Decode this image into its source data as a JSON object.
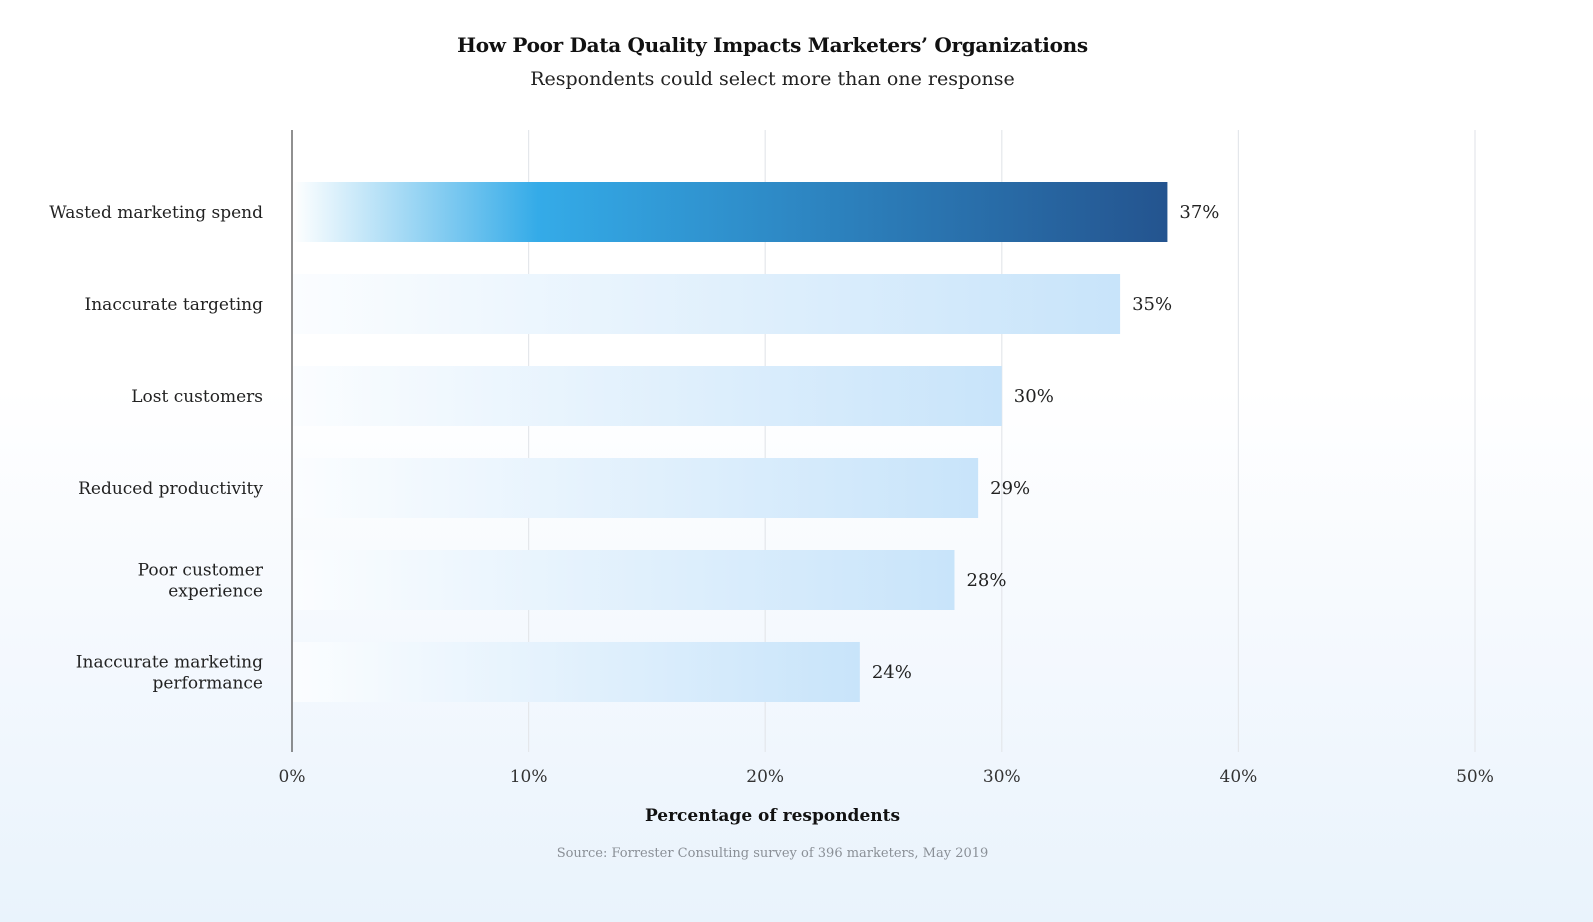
{
  "chart_data": {
    "type": "bar",
    "orientation": "horizontal",
    "title": "How Poor Data Quality Impacts Marketers’ Organizations",
    "subtitle": "Respondents could select more than one response",
    "categories": [
      "Wasted marketing spend",
      "Inaccurate targeting",
      "Lost customers",
      "Reduced productivity",
      "Poor customer experience",
      "Inaccurate marketing performance"
    ],
    "category_lines": [
      [
        "Wasted marketing spend"
      ],
      [
        "Inaccurate targeting"
      ],
      [
        "Lost customers"
      ],
      [
        "Reduced productivity"
      ],
      [
        "Poor customer",
        "experience"
      ],
      [
        "Inaccurate marketing",
        "performance"
      ]
    ],
    "values": [
      37,
      35,
      30,
      29,
      28,
      24
    ],
    "value_labels": [
      "37%",
      "35%",
      "30%",
      "29%",
      "28%",
      "24%"
    ],
    "highlighted_index": 0,
    "xlabel": "Percentage of respondents",
    "ylabel": "",
    "xlim": [
      0,
      50
    ],
    "x_ticks": [
      0,
      10,
      20,
      30,
      40,
      50
    ],
    "x_tick_labels": [
      "0%",
      "10%",
      "20%",
      "30%",
      "40%",
      "50%"
    ],
    "grid": "vertical",
    "colors": {
      "highlight_start": "#ffffff",
      "highlight_mid": "#34abe8",
      "highlight_end": "#24548f",
      "bar_start": "#fbfdff",
      "bar_end": "#c8e4fa",
      "gridline": "#e4e7eb",
      "axis": "#555555"
    },
    "source": "Source: Forrester Consulting survey of 396 marketers, May 2019"
  }
}
